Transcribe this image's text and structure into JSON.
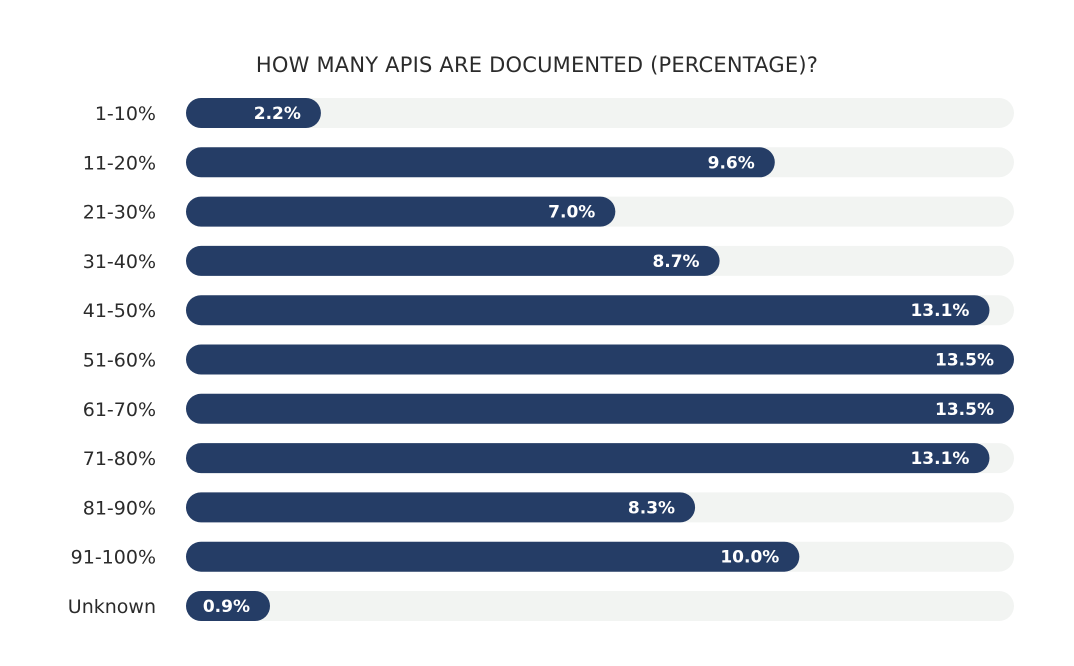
{
  "chart_data": {
    "type": "bar",
    "orientation": "horizontal",
    "title": "HOW MANY APIS ARE DOCUMENTED (PERCENTAGE)?",
    "categories": [
      "1-10%",
      "11-20%",
      "21-30%",
      "31-40%",
      "41-50%",
      "51-60%",
      "61-70%",
      "71-80%",
      "81-90%",
      "91-100%",
      "Unknown"
    ],
    "values": [
      2.2,
      9.6,
      7.0,
      8.7,
      13.1,
      13.5,
      13.5,
      13.1,
      8.3,
      10.0,
      0.9
    ],
    "value_labels": [
      "2.2%",
      "9.6%",
      "7.0%",
      "8.7%",
      "13.1%",
      "13.5%",
      "13.5%",
      "13.1%",
      "8.3%",
      "10.0%",
      "0.9%"
    ],
    "xlim": [
      0,
      13.5
    ],
    "grid": false,
    "legend": "none",
    "colors": {
      "bar": "#253d66",
      "track": "#f2f4f2",
      "value_text": "#ffffff",
      "label_text": "#2b2b2b"
    }
  }
}
